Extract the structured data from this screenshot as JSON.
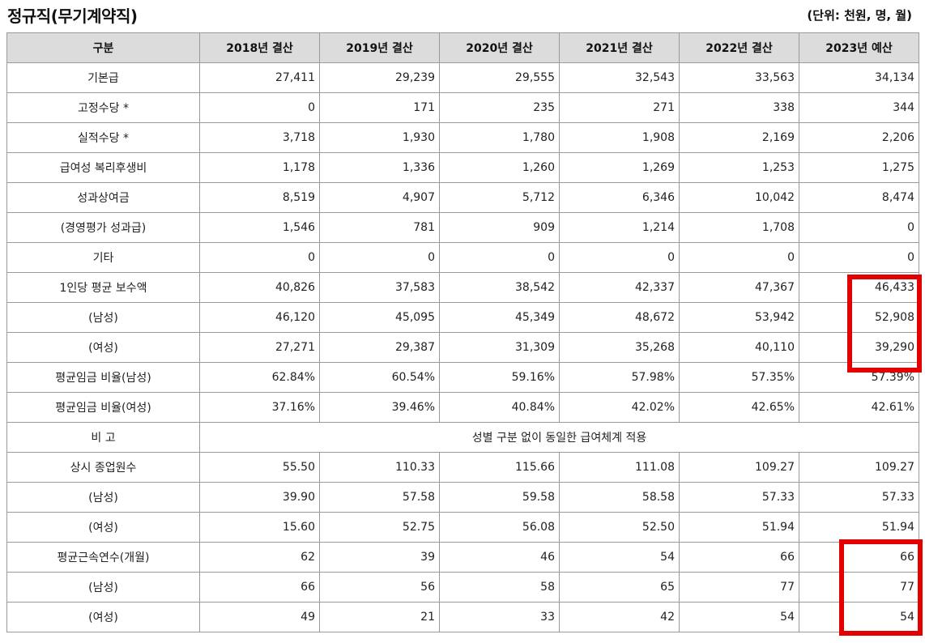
{
  "page": {
    "title": "정규직(무기계약직)",
    "unit": "(단위: 천원, 명, 월)"
  },
  "table": {
    "headers": [
      "구분",
      "2018년 결산",
      "2019년 결산",
      "2020년 결산",
      "2021년 결산",
      "2022년 결산",
      "2023년 예산"
    ],
    "rows": [
      {
        "label": "기본급",
        "values": [
          "27,411",
          "29,239",
          "29,555",
          "32,543",
          "33,563",
          "34,134"
        ]
      },
      {
        "label": "고정수당 *",
        "values": [
          "0",
          "171",
          "235",
          "271",
          "338",
          "344"
        ]
      },
      {
        "label": "실적수당 *",
        "values": [
          "3,718",
          "1,930",
          "1,780",
          "1,908",
          "2,169",
          "2,206"
        ]
      },
      {
        "label": "급여성 복리후생비",
        "values": [
          "1,178",
          "1,336",
          "1,260",
          "1,269",
          "1,253",
          "1,275"
        ]
      },
      {
        "label": "성과상여금",
        "values": [
          "8,519",
          "4,907",
          "5,712",
          "6,346",
          "10,042",
          "8,474"
        ]
      },
      {
        "label": "(경영평가 성과급)",
        "values": [
          "1,546",
          "781",
          "909",
          "1,214",
          "1,708",
          "0"
        ]
      },
      {
        "label": "기타",
        "values": [
          "0",
          "0",
          "0",
          "0",
          "0",
          "0"
        ]
      },
      {
        "label": "1인당 평균 보수액",
        "values": [
          "40,826",
          "37,583",
          "38,542",
          "42,337",
          "47,367",
          "46,433"
        ]
      },
      {
        "label": "(남성)",
        "values": [
          "46,120",
          "45,095",
          "45,349",
          "48,672",
          "53,942",
          "52,908"
        ]
      },
      {
        "label": "(여성)",
        "values": [
          "27,271",
          "29,387",
          "31,309",
          "35,268",
          "40,110",
          "39,290"
        ]
      },
      {
        "label": "평균임금 비율(남성)",
        "values": [
          "62.84%",
          "60.54%",
          "59.16%",
          "57.98%",
          "57.35%",
          "57.39%"
        ]
      },
      {
        "label": "평균임금 비율(여성)",
        "values": [
          "37.16%",
          "39.46%",
          "40.84%",
          "42.02%",
          "42.65%",
          "42.61%"
        ]
      }
    ],
    "remark": {
      "label": "비 고",
      "text": "성별 구분 없이 동일한 급여체계 적용"
    },
    "rows2": [
      {
        "label": "상시 종업원수",
        "values": [
          "55.50",
          "110.33",
          "115.66",
          "111.08",
          "109.27",
          "109.27"
        ]
      },
      {
        "label": "(남성)",
        "values": [
          "39.90",
          "57.58",
          "59.58",
          "58.58",
          "57.33",
          "57.33"
        ]
      },
      {
        "label": "(여성)",
        "values": [
          "15.60",
          "52.75",
          "56.08",
          "52.50",
          "51.94",
          "51.94"
        ]
      },
      {
        "label": "평균근속연수(개월)",
        "values": [
          "62",
          "39",
          "46",
          "54",
          "66",
          "66"
        ]
      },
      {
        "label": "(남성)",
        "values": [
          "66",
          "56",
          "58",
          "65",
          "77",
          "77"
        ]
      },
      {
        "label": "(여성)",
        "values": [
          "49",
          "21",
          "33",
          "42",
          "54",
          "54"
        ]
      }
    ]
  },
  "colors": {
    "header_bg": "#dcdcdc",
    "border": "#9a9a9a",
    "highlight": "#e30000"
  }
}
